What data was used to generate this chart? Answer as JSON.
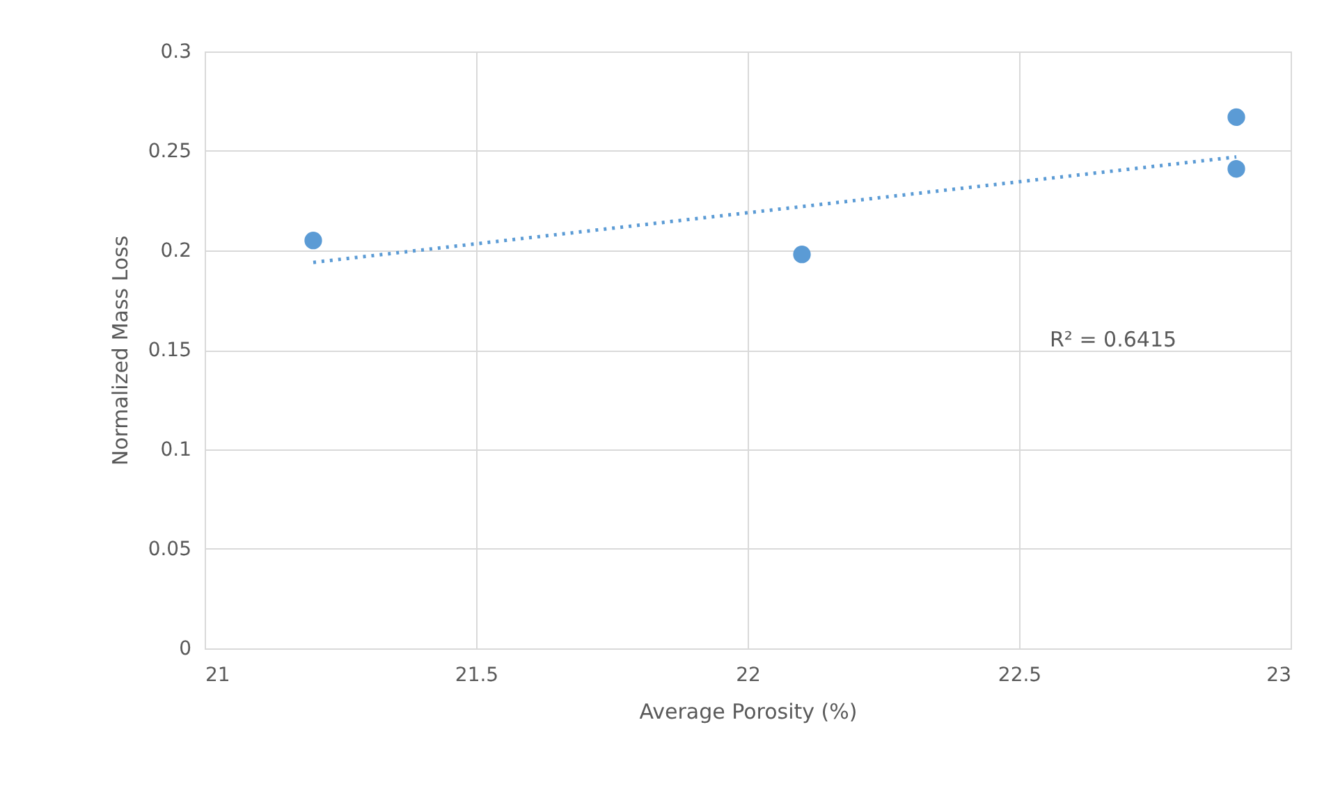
{
  "chart_data": {
    "type": "scatter",
    "xlabel": "Average Porosity (%)",
    "ylabel": "Normalized Mass Loss",
    "xlim": [
      21,
      23
    ],
    "xticks": [
      21,
      21.5,
      22,
      22.5,
      23
    ],
    "ylim": [
      0,
      0.3
    ],
    "yticks": [
      0,
      0.05,
      0.1,
      0.15,
      0.2,
      0.25,
      0.3
    ],
    "grid": true,
    "series": [
      {
        "color": "#5b9bd5",
        "marker": "circle",
        "x": [
          21.2,
          22.1,
          22.9,
          22.9
        ],
        "values": [
          0.205,
          0.198,
          0.267,
          0.241
        ]
      },
      {
        "type": "line",
        "color": "#5b9bd5",
        "line_style": "dotted",
        "x": [
          21.2,
          22.9
        ],
        "values": [
          0.194,
          0.247
        ]
      }
    ],
    "annotations": [
      "R² = 0.6415"
    ]
  }
}
